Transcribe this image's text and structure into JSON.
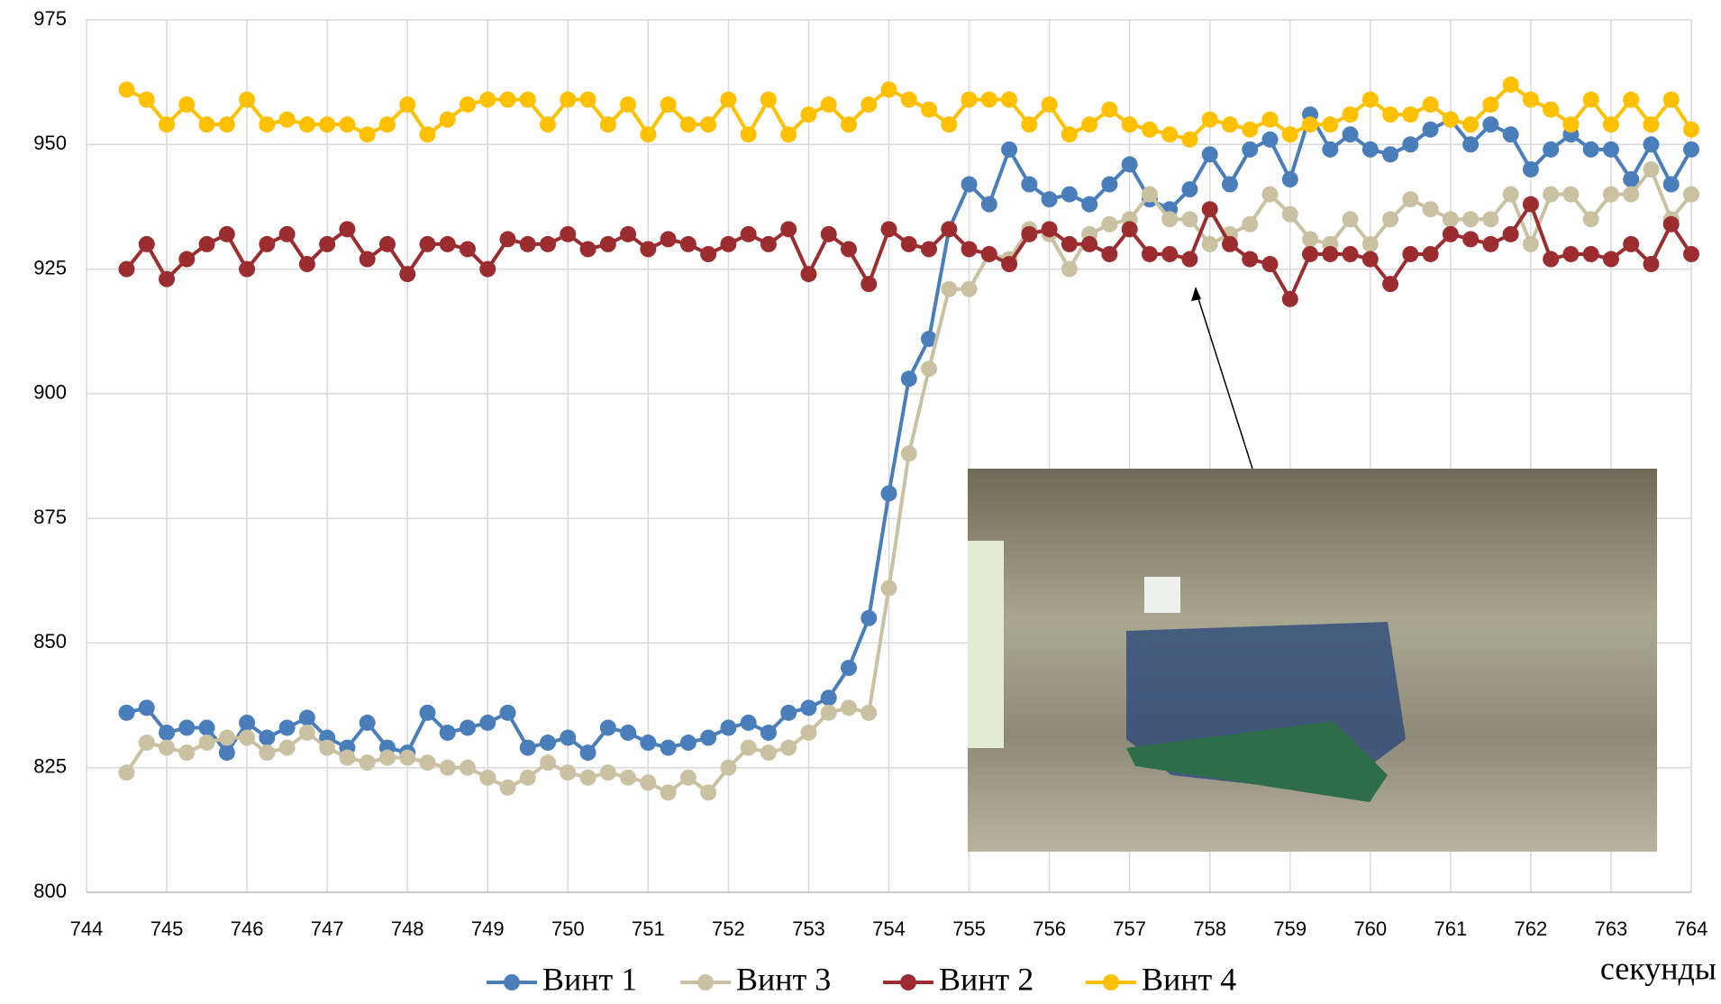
{
  "chart_data": {
    "type": "line",
    "x_label": "секунды",
    "x": [
      744.5,
      744.75,
      745,
      745.25,
      745.5,
      745.75,
      746,
      746.25,
      746.5,
      746.75,
      747,
      747.25,
      747.5,
      747.75,
      748,
      748.25,
      748.5,
      748.75,
      749,
      749.25,
      749.5,
      749.75,
      750,
      750.25,
      750.5,
      750.75,
      751,
      751.25,
      751.5,
      751.75,
      752,
      752.25,
      752.5,
      752.75,
      753,
      753.25,
      753.5,
      753.75,
      754,
      754.25,
      754.5,
      754.75,
      755,
      755.25,
      755.5,
      755.75,
      756,
      756.25,
      756.5,
      756.75,
      757,
      757.25,
      757.5,
      757.75,
      758,
      758.25,
      758.5,
      758.75,
      759,
      759.25,
      759.5,
      759.75,
      760,
      760.25,
      760.5,
      760.75,
      761,
      761.25,
      761.5,
      761.75,
      762,
      762.25,
      762.5,
      762.75,
      763,
      763.25,
      763.5,
      763.75,
      764
    ],
    "series": [
      {
        "name": "Винт 1",
        "color": "#4a7ebb",
        "values": [
          836,
          837,
          832,
          833,
          833,
          828,
          834,
          831,
          833,
          835,
          831,
          829,
          834,
          829,
          828,
          836,
          832,
          833,
          834,
          836,
          829,
          830,
          831,
          828,
          833,
          832,
          830,
          829,
          830,
          831,
          833,
          834,
          832,
          836,
          837,
          839,
          845,
          855,
          880,
          903,
          911,
          933,
          942,
          938,
          949,
          942,
          939,
          940,
          938,
          942,
          946,
          939,
          937,
          941,
          948,
          942,
          949,
          951,
          943,
          956,
          949,
          952,
          949,
          948,
          950,
          953,
          955,
          950,
          954,
          952,
          945,
          949,
          952,
          949,
          949,
          943,
          950,
          942,
          949
        ]
      },
      {
        "name": "Винт 3",
        "color": "#c9c1a2",
        "values": [
          824,
          830,
          829,
          828,
          830,
          831,
          831,
          828,
          829,
          832,
          829,
          827,
          826,
          827,
          827,
          826,
          825,
          825,
          823,
          821,
          823,
          826,
          824,
          823,
          824,
          823,
          822,
          820,
          823,
          820,
          825,
          829,
          828,
          829,
          832,
          836,
          837,
          836,
          861,
          888,
          905,
          921,
          921,
          928,
          927,
          933,
          932,
          925,
          932,
          934,
          935,
          940,
          935,
          935,
          930,
          932,
          934,
          940,
          936,
          931,
          930,
          935,
          930,
          935,
          939,
          937,
          935,
          935,
          935,
          940,
          930,
          940,
          940,
          935,
          940,
          940,
          945,
          935,
          940
        ]
      },
      {
        "name": "Винт 2",
        "color": "#9b2d30",
        "values": [
          925,
          930,
          923,
          927,
          930,
          932,
          925,
          930,
          932,
          926,
          930,
          933,
          927,
          930,
          924,
          930,
          930,
          929,
          925,
          931,
          930,
          930,
          932,
          929,
          930,
          932,
          929,
          931,
          930,
          928,
          930,
          932,
          930,
          933,
          924,
          932,
          929,
          922,
          933,
          930,
          929,
          933,
          929,
          928,
          926,
          932,
          933,
          930,
          930,
          928,
          933,
          928,
          928,
          927,
          937,
          930,
          927,
          926,
          919,
          928,
          928,
          928,
          927,
          922,
          928,
          928,
          932,
          931,
          930,
          932,
          938,
          927,
          928,
          928,
          927,
          930,
          926,
          934,
          928
        ]
      },
      {
        "name": "Винт 4",
        "color": "#ffc000",
        "values": [
          961,
          959,
          954,
          958,
          954,
          954,
          959,
          954,
          955,
          954,
          954,
          954,
          952,
          954,
          958,
          952,
          955,
          958,
          959,
          959,
          959,
          954,
          959,
          959,
          954,
          958,
          952,
          958,
          954,
          954,
          959,
          952,
          959,
          952,
          956,
          958,
          954,
          958,
          961,
          959,
          957,
          954,
          959,
          959,
          959,
          954,
          958,
          952,
          954,
          957,
          954,
          953,
          952,
          951,
          955,
          954,
          953,
          955,
          952,
          954,
          954,
          956,
          959,
          956,
          956,
          958,
          955,
          954,
          958,
          962,
          959,
          957,
          954,
          959,
          954,
          959,
          954,
          959,
          953
        ]
      }
    ],
    "xlim": [
      744,
      764
    ],
    "xticks": [
      744,
      745,
      746,
      747,
      748,
      749,
      750,
      751,
      752,
      753,
      754,
      755,
      756,
      757,
      758,
      759,
      760,
      761,
      762,
      763,
      764
    ],
    "ylim": [
      800,
      975
    ],
    "yticks": [
      800,
      825,
      850,
      875,
      900,
      925,
      950,
      975
    ],
    "grid": true,
    "legend": "bottom"
  }
}
